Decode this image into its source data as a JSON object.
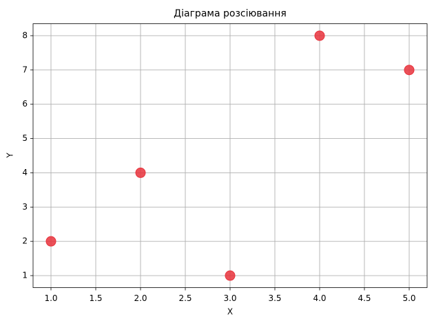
{
  "chart_data": {
    "type": "scatter",
    "title": "Діаграма розсіювання",
    "xlabel": "X",
    "ylabel": "Y",
    "x": [
      1,
      2,
      3,
      4,
      5
    ],
    "values": [
      2,
      4,
      1,
      8,
      7
    ],
    "color": "#e8323c",
    "xlim": [
      0.8,
      5.2
    ],
    "ylim": [
      0.65,
      8.35
    ],
    "xticks": [
      {
        "value": 1,
        "label": "1.0"
      },
      {
        "value": 1.5,
        "label": "1.5"
      },
      {
        "value": 2,
        "label": "2.0"
      },
      {
        "value": 2.5,
        "label": "2.5"
      },
      {
        "value": 3,
        "label": "3.0"
      },
      {
        "value": 3.5,
        "label": "3.5"
      },
      {
        "value": 4,
        "label": "4.0"
      },
      {
        "value": 4.5,
        "label": "4.5"
      },
      {
        "value": 5,
        "label": "5.0"
      }
    ],
    "yticks": [
      1,
      2,
      3,
      4,
      5,
      6,
      7,
      8
    ],
    "grid": true
  }
}
